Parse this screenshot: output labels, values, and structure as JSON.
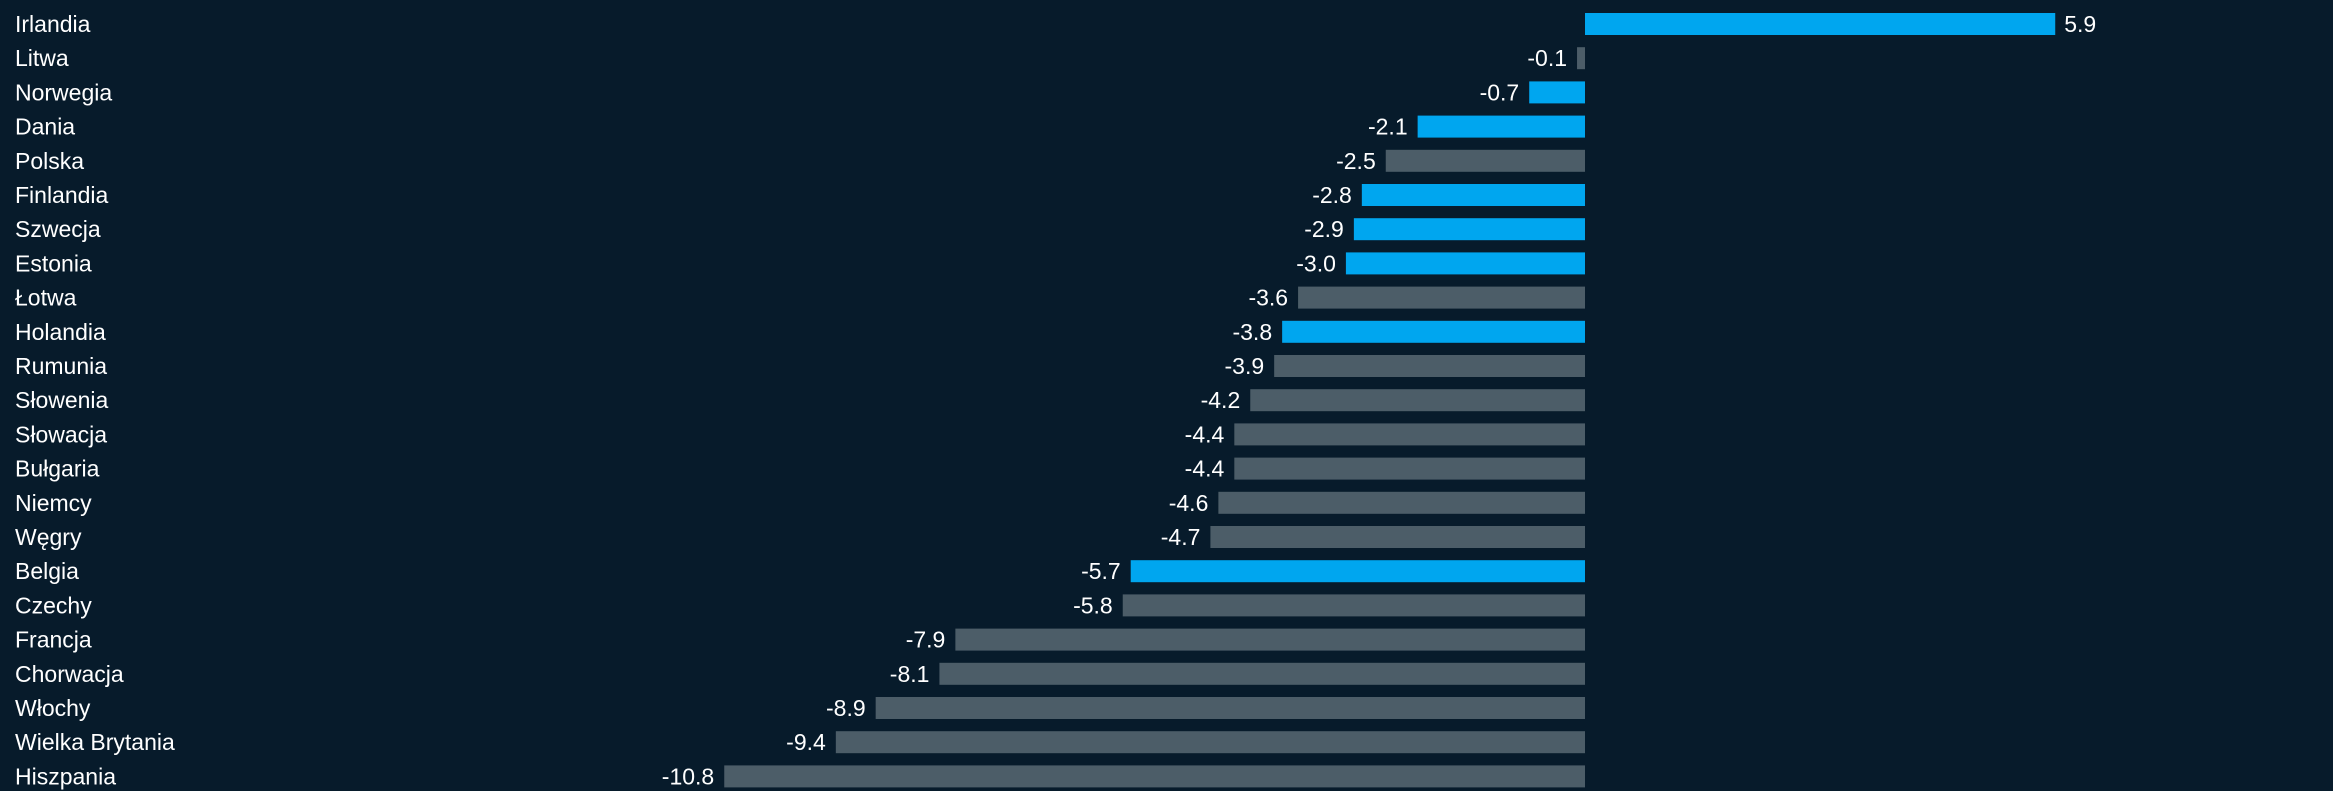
{
  "chart_data": {
    "type": "bar",
    "orientation": "horizontal",
    "categories": [
      "Irlandia",
      "Litwa",
      "Norwegia",
      "Dania",
      "Polska",
      "Finlandia",
      "Szwecja",
      "Estonia",
      "Łotwa",
      "Holandia",
      "Rumunia",
      "Słowenia",
      "Słowacja",
      "Bułgaria",
      "Niemcy",
      "Węgry",
      "Belgia",
      "Czechy",
      "Francja",
      "Chorwacja",
      "Włochy",
      "Wielka Brytania",
      "Hiszpania"
    ],
    "values": [
      5.9,
      -0.1,
      -0.7,
      -2.1,
      -2.5,
      -2.8,
      -2.9,
      -3.0,
      -3.6,
      -3.8,
      -3.9,
      -4.2,
      -4.4,
      -4.4,
      -4.6,
      -4.7,
      -5.7,
      -5.8,
      -7.9,
      -8.1,
      -8.9,
      -9.4,
      -10.8
    ],
    "value_labels": [
      "5.9",
      "-0.1",
      "-0.7",
      "-2.1",
      "-2.5",
      "-2.8",
      "-2.9",
      "-3.0",
      "-3.6",
      "-3.8",
      "-3.9",
      "-4.2",
      "-4.4",
      "-4.4",
      "-4.6",
      "-4.7",
      "-5.7",
      "-5.8",
      "-7.9",
      "-8.1",
      "-8.9",
      "-9.4",
      "-10.8"
    ],
    "highlighted": [
      true,
      false,
      true,
      true,
      false,
      true,
      true,
      true,
      false,
      true,
      false,
      false,
      false,
      false,
      false,
      false,
      true,
      false,
      false,
      false,
      false,
      false,
      false
    ],
    "xlim": [
      -10.8,
      5.9
    ],
    "title": "",
    "xlabel": "",
    "ylabel": "",
    "grid": false,
    "legend": "none",
    "colors": {
      "background": "#071b2b",
      "highlight": "#00a6ef",
      "default": "#4c5d68",
      "text": "#ffffff"
    }
  }
}
